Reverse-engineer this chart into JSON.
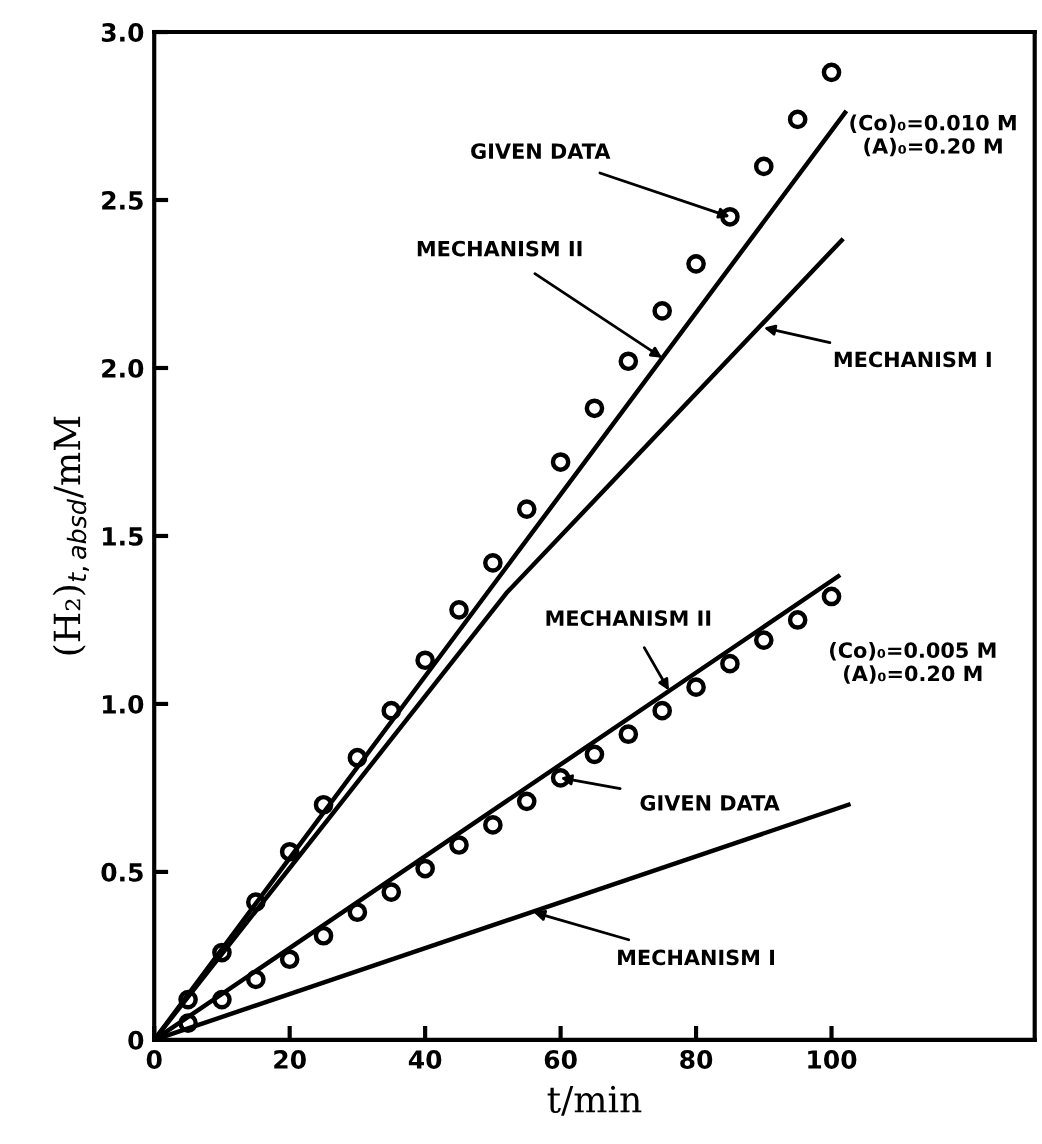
{
  "chart_data": {
    "type": "line",
    "xlabel": "t/min",
    "ylabel": "(H₂)$_{t,absd}$/mM",
    "xlim": [
      0,
      130
    ],
    "xticks": [
      0,
      20,
      40,
      60,
      80,
      100
    ],
    "ylim": [
      0,
      3.0
    ],
    "yticks": [
      0,
      {
        "value": 0.5,
        "label": "0.5"
      },
      {
        "value": 1.0,
        "label": "1.0"
      },
      {
        "value": 1.5,
        "label": "1.5"
      },
      {
        "value": 2.0,
        "label": "2.0"
      },
      {
        "value": 2.5,
        "label": "2.5"
      },
      {
        "value": 3.0,
        "label": "3.0"
      }
    ],
    "grid": false,
    "line_style": "solid",
    "series": [
      {
        "type": "scatter",
        "marker": "circle",
        "color": "#000000",
        "x": [
          5,
          10,
          15,
          20,
          25,
          30,
          35,
          40,
          45,
          50,
          55,
          60,
          65,
          70,
          75,
          80,
          85,
          90,
          95,
          100
        ],
        "values": [
          0.12,
          0.26,
          0.41,
          0.56,
          0.7,
          0.84,
          0.98,
          1.13,
          1.28,
          1.42,
          1.58,
          1.72,
          1.88,
          2.02,
          2.17,
          2.31,
          2.45,
          2.6,
          2.74,
          2.88
        ]
      },
      {
        "marker": "none",
        "color": "#000000",
        "x": [
          0,
          102
        ],
        "values": [
          0,
          2.76
        ]
      },
      {
        "marker": "none",
        "color": "#000000",
        "x": [
          0,
          52,
          101.5
        ],
        "values": [
          0,
          1.33,
          2.38
        ]
      },
      {
        "type": "scatter",
        "marker": "circle",
        "color": "#000000",
        "x": [
          5,
          10,
          15,
          20,
          25,
          30,
          35,
          40,
          45,
          50,
          55,
          60,
          65,
          70,
          75,
          80,
          85,
          90,
          95,
          100
        ],
        "values": [
          0.05,
          0.12,
          0.18,
          0.24,
          0.31,
          0.38,
          0.44,
          0.51,
          0.58,
          0.64,
          0.71,
          0.78,
          0.85,
          0.91,
          0.98,
          1.05,
          1.12,
          1.19,
          1.25,
          1.32
        ]
      },
      {
        "marker": "none",
        "color": "#000000",
        "x": [
          0,
          101
        ],
        "values": [
          0,
          1.38
        ]
      },
      {
        "marker": "none",
        "color": "#000000",
        "x": [
          0,
          102.5
        ],
        "values": [
          0,
          0.7
        ]
      }
    ],
    "annotations": [
      {
        "text": "GIVEN DATA",
        "x": 85,
        "y": 2.45
      },
      {
        "text": "MECHANISM II",
        "x": 75,
        "y": 2.03
      },
      {
        "text": "MECHANISM I",
        "x": 90,
        "y": 2.12
      },
      "(Co)₀=0.010 M\n(A)₀=0.20 M",
      {
        "text": "MECHANISM II",
        "x": 76,
        "y": 1.04
      },
      {
        "text": "GIVEN DATA",
        "x": 60,
        "y": 0.78
      },
      {
        "text": "MECHANISM I",
        "x": 56,
        "y": 0.38
      },
      "(Co)₀=0.005 M\n(A)₀=0.20 M"
    ]
  }
}
